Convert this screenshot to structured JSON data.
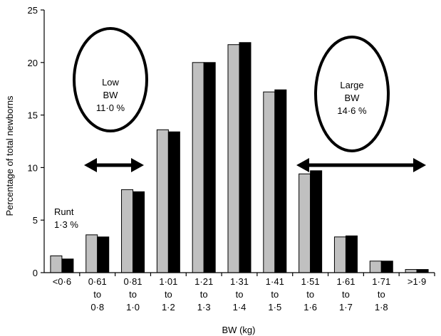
{
  "chart_data": {
    "type": "bar",
    "xlabel": "BW (kg)",
    "ylabel": "Percentage of total newborns",
    "ylim": [
      0,
      25
    ],
    "yticks": [
      "0",
      "5",
      "10",
      "15",
      "20",
      "25"
    ],
    "categories": [
      [
        "<0·6"
      ],
      [
        "0·61",
        "to",
        "0·8"
      ],
      [
        "0·81",
        "to",
        "1·0"
      ],
      [
        "1·01",
        "to",
        "1·2"
      ],
      [
        "1·21",
        "to",
        "1·3"
      ],
      [
        "1·31",
        "to",
        "1·4"
      ],
      [
        "1·41",
        "to",
        "1·5"
      ],
      [
        "1·51",
        "to",
        "1·6"
      ],
      [
        "1·61",
        "to",
        "1·7"
      ],
      [
        "1·71",
        "to",
        "1·8"
      ],
      [
        ">1·9"
      ]
    ],
    "series": [
      {
        "color": "#c0c0c0",
        "values": [
          1.6,
          3.6,
          7.9,
          13.6,
          20.0,
          21.7,
          17.2,
          9.4,
          3.4,
          1.1,
          0.3
        ]
      },
      {
        "color": "#000000",
        "values": [
          1.3,
          3.4,
          7.7,
          13.4,
          20.0,
          21.9,
          17.4,
          9.7,
          3.5,
          1.1,
          0.3
        ]
      }
    ],
    "annotations": {
      "runt": [
        "Runt",
        "1·3 %"
      ],
      "low_bw": [
        "Low",
        "BW",
        "11·0 %"
      ],
      "large_bw": [
        "Large",
        "BW",
        "14·6 %"
      ]
    }
  }
}
